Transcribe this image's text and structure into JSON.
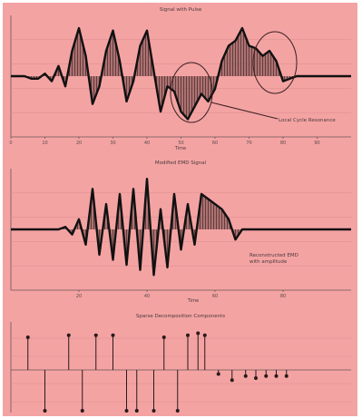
{
  "chart_data": [
    {
      "type": "line",
      "title": "Signal with Pulse",
      "xlabel": "Time",
      "ylabel": "",
      "xlim": [
        0,
        100
      ],
      "ylim": [
        -1.2,
        1.2
      ],
      "x_ticks": [
        "0",
        "10",
        "20",
        "30",
        "40",
        "50",
        "60",
        "70",
        "80",
        "90"
      ],
      "annotation": "Local Cycle Resonance",
      "x": [
        0,
        2,
        4,
        6,
        8,
        10,
        12,
        14,
        16,
        18,
        20,
        22,
        24,
        26,
        28,
        30,
        32,
        34,
        36,
        38,
        40,
        42,
        44,
        46,
        48,
        50,
        52,
        54,
        56,
        58,
        60,
        62,
        64,
        66,
        68,
        70,
        72,
        74,
        76,
        78,
        80,
        82,
        84,
        86,
        88,
        90,
        92,
        94,
        96,
        98,
        100
      ],
      "y": [
        0,
        0,
        0,
        -0.05,
        -0.05,
        0.05,
        -0.1,
        0.2,
        -0.2,
        0.5,
        0.95,
        0.4,
        -0.55,
        -0.2,
        0.5,
        0.9,
        0.3,
        -0.5,
        -0.1,
        0.6,
        0.9,
        0.1,
        -0.7,
        -0.2,
        -0.3,
        -0.7,
        -0.85,
        -0.6,
        -0.35,
        -0.5,
        -0.25,
        0.3,
        0.6,
        0.7,
        0.95,
        0.6,
        0.55,
        0.4,
        0.5,
        0.3,
        -0.1,
        -0.05,
        0,
        0,
        0,
        0,
        0,
        0,
        0,
        0,
        0
      ]
    },
    {
      "type": "line",
      "title": "Modified EMD Signal",
      "xlabel": "Time",
      "ylabel": "",
      "xlim": [
        0,
        100
      ],
      "ylim": [
        -1.2,
        1.2
      ],
      "x_ticks": [
        "20",
        "40",
        "60",
        "80"
      ],
      "annotation": "Reconstructed EMD\nwith amplitude",
      "x": [
        0,
        2,
        4,
        6,
        8,
        10,
        12,
        14,
        16,
        18,
        20,
        22,
        24,
        26,
        28,
        30,
        32,
        34,
        36,
        38,
        40,
        42,
        44,
        46,
        48,
        50,
        52,
        54,
        56,
        58,
        60,
        62,
        64,
        66,
        68,
        70,
        72,
        74,
        76,
        78,
        80,
        82,
        84,
        86,
        88,
        90,
        92,
        94,
        96,
        98,
        100
      ],
      "y": [
        0,
        0,
        0,
        0,
        0,
        0,
        0,
        0,
        0.05,
        -0.1,
        0.2,
        -0.3,
        0.8,
        -0.5,
        0.5,
        -0.6,
        0.7,
        -0.7,
        0.8,
        -0.8,
        1.0,
        -0.9,
        0.4,
        -0.75,
        0.7,
        -0.4,
        0.5,
        -0.3,
        0.7,
        0.6,
        0.5,
        0.4,
        0.2,
        -0.2,
        0,
        0,
        0,
        0,
        0,
        0,
        0,
        0,
        0,
        0,
        0,
        0,
        0,
        0,
        0,
        0,
        0
      ]
    },
    {
      "type": "stem",
      "title": "Sparse Decomposition Components",
      "xlabel": "",
      "ylabel": "",
      "xlim": [
        0,
        100
      ],
      "ylim": [
        -1.2,
        1.2
      ],
      "x": [
        5,
        10,
        17,
        21,
        25,
        30,
        34,
        37,
        42,
        45,
        49,
        52,
        55,
        57,
        61,
        65,
        69,
        72,
        75,
        78,
        81
      ],
      "y": [
        0.8,
        -1.0,
        0.85,
        -1.0,
        0.85,
        0.85,
        -1.0,
        -1.0,
        -1.0,
        0.8,
        -1.0,
        0.85,
        0.9,
        0.85,
        -0.1,
        -0.25,
        -0.15,
        -0.2,
        -0.15,
        -0.15,
        -0.15
      ]
    }
  ]
}
